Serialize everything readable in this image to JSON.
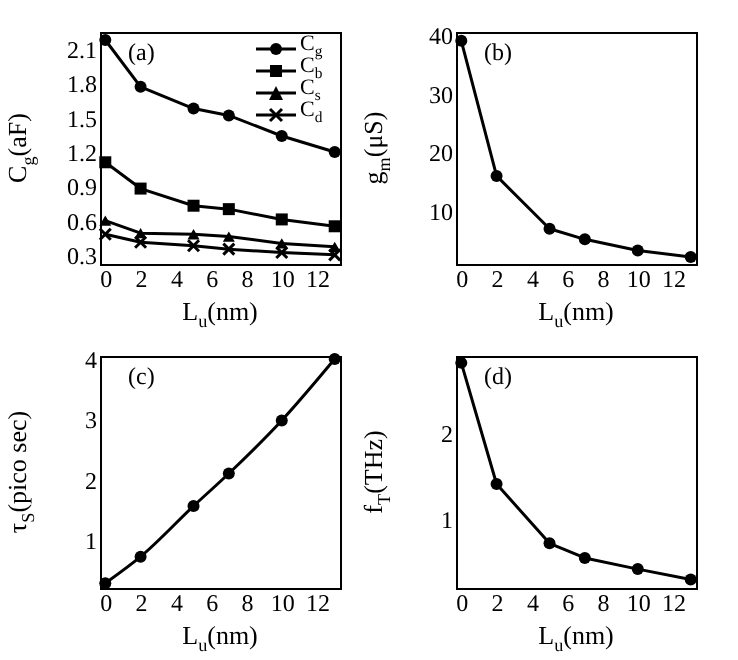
{
  "chart_data": [
    {
      "type": "line",
      "xlabel": "L$_{u}$(nm)",
      "ylabel": "C$_{g}$(aF)",
      "annotations": [
        "(a)"
      ],
      "x": [
        0,
        2,
        5,
        7,
        10,
        13
      ],
      "xlim": [
        -0.3,
        13.3
      ],
      "xticks": [
        0,
        2,
        4,
        6,
        8,
        10,
        12
      ],
      "ylim": [
        0.22,
        2.25
      ],
      "yticks": [
        0.3,
        0.6,
        0.9,
        1.2,
        1.5,
        1.8,
        2.1
      ],
      "legend": "top right",
      "series": [
        {
          "name": "C$_{g}$",
          "color": "#000000",
          "marker": "circle",
          "values": [
            2.18,
            1.77,
            1.58,
            1.52,
            1.34,
            1.2
          ]
        },
        {
          "name": "C$_{b}$",
          "color": "#000000",
          "marker": "square",
          "values": [
            1.11,
            0.88,
            0.73,
            0.7,
            0.61,
            0.55
          ]
        },
        {
          "name": "C$_{s}$",
          "color": "#000000",
          "marker": "triangle",
          "values": [
            0.6,
            0.49,
            0.48,
            0.46,
            0.4,
            0.37
          ]
        },
        {
          "name": "C$_{d}$",
          "color": "#000000",
          "marker": "cross",
          "values": [
            0.48,
            0.41,
            0.38,
            0.35,
            0.32,
            0.3
          ]
        }
      ]
    },
    {
      "type": "line",
      "xlabel": "L$_{u}$(nm)",
      "ylabel": "g$_{m}$(μS)",
      "annotations": [
        "(b)"
      ],
      "x": [
        0,
        2,
        5,
        7,
        10,
        13
      ],
      "xlim": [
        -0.3,
        13.3
      ],
      "xticks": [
        0,
        2,
        4,
        6,
        8,
        10,
        12
      ],
      "ylim": [
        1,
        40.5
      ],
      "yticks": [
        10,
        20,
        30,
        40
      ],
      "marker": "circle",
      "series": [
        {
          "color": "#000000",
          "values": [
            39,
            16,
            7,
            5.2,
            3.3,
            2.2
          ]
        }
      ]
    },
    {
      "type": "line",
      "xlabel": "L$_{u}$(nm)",
      "ylabel": "τ$_{S}$(pico sec)",
      "annotations": [
        "(c)"
      ],
      "x": [
        0,
        2,
        5,
        7,
        10,
        13
      ],
      "xlim": [
        -0.3,
        13.3
      ],
      "xticks": [
        0,
        2,
        4,
        6,
        8,
        10,
        12
      ],
      "ylim": [
        0.2,
        4.05
      ],
      "yticks": [
        1,
        2,
        3,
        4
      ],
      "marker": "circle",
      "series": [
        {
          "color": "#000000",
          "values": [
            0.28,
            0.72,
            1.56,
            2.1,
            2.98,
            4.0
          ]
        }
      ]
    },
    {
      "type": "line",
      "xlabel": "L$_{u}$(nm)",
      "ylabel": "f$_{T}$(THz)",
      "annotations": [
        "(d)"
      ],
      "x": [
        0,
        2,
        5,
        7,
        10,
        13
      ],
      "xlim": [
        -0.3,
        13.3
      ],
      "xticks": [
        0,
        2,
        4,
        6,
        8,
        10,
        12
      ],
      "ylim": [
        0.2,
        2.9
      ],
      "yticks": [
        1,
        2
      ],
      "marker": "circle",
      "series": [
        {
          "color": "#000000",
          "values": [
            2.82,
            1.41,
            0.72,
            0.55,
            0.42,
            0.3
          ]
        }
      ]
    }
  ]
}
